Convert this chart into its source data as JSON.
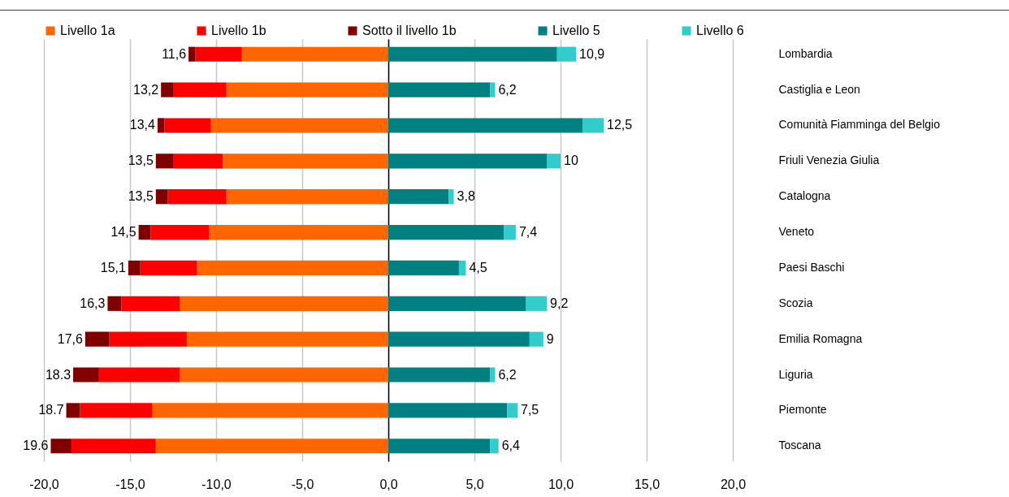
{
  "chart_data": {
    "type": "bar",
    "orientation": "horizontal",
    "stacked": true,
    "categories": [
      "Lombardia",
      "Castiglia e Leon",
      "Comunità Fiamminga del Belgio",
      "Friuli Venezia Giulia",
      "Catalogna",
      "Veneto",
      "Paesi Baschi",
      "Scozia",
      "Emilia Romagna",
      "Liguria",
      "Piemonte",
      "Toscana"
    ],
    "series": [
      {
        "name": "Livello 1a",
        "color": "#ff6600",
        "values": [
          -8.5,
          -9.4,
          -10.3,
          -9.6,
          -9.4,
          -10.4,
          -11.1,
          -12.1,
          -11.7,
          -12.1,
          -13.7,
          -13.5
        ]
      },
      {
        "name": "Livello 1b",
        "color": "#ff0000",
        "values": [
          -2.7,
          -3.1,
          -2.7,
          -2.9,
          -3.4,
          -3.4,
          -3.3,
          -3.4,
          -4.5,
          -4.7,
          -4.2,
          -4.9
        ]
      },
      {
        "name": "Sotto il livello 1b",
        "color": "#800000",
        "values": [
          -0.4,
          -0.7,
          -0.4,
          -1.0,
          -0.7,
          -0.7,
          -0.7,
          -0.8,
          -1.4,
          -1.5,
          -0.8,
          -1.2
        ]
      },
      {
        "name": "Livello 5",
        "color": "#008080",
        "values": [
          9.8,
          5.9,
          11.3,
          9.2,
          3.5,
          6.7,
          4.1,
          8.0,
          8.2,
          5.9,
          6.9,
          5.9
        ]
      },
      {
        "name": "Livello 6",
        "color": "#33cccc",
        "values": [
          1.1,
          0.3,
          1.2,
          0.8,
          0.3,
          0.7,
          0.4,
          1.2,
          0.8,
          0.3,
          0.6,
          0.5
        ]
      }
    ],
    "annotations": [
      {
        "text": "11,6",
        "x": -11.6,
        "y": "Lombardia"
      },
      {
        "text": "13,2",
        "x": -13.2,
        "y": "Castiglia e Leon"
      },
      {
        "text": "13,4",
        "x": -13.4,
        "y": "Comunità Fiamminga del Belgio"
      },
      {
        "text": "13,5",
        "x": -13.5,
        "y": "Friuli Venezia Giulia"
      },
      {
        "text": "13,5",
        "x": -13.5,
        "y": "Catalogna"
      },
      {
        "text": "14,5",
        "x": -14.5,
        "y": "Veneto"
      },
      {
        "text": "15,1",
        "x": -15.1,
        "y": "Paesi Baschi"
      },
      {
        "text": "16,3",
        "x": -16.3,
        "y": "Scozia"
      },
      {
        "text": "17,6",
        "x": -17.6,
        "y": "Emilia Romagna"
      },
      {
        "text": "18.3",
        "x": -18.3,
        "y": "Liguria"
      },
      {
        "text": "18.7",
        "x": -18.7,
        "y": "Piemonte"
      },
      {
        "text": "19.6",
        "x": -19.6,
        "y": "Toscana"
      },
      {
        "text": "10,9",
        "x": 10.9,
        "y": "Lombardia"
      },
      {
        "text": "6,2",
        "x": 6.2,
        "y": "Castiglia e Leon"
      },
      {
        "text": "12,5",
        "x": 12.5,
        "y": "Comunità Fiamminga del Belgio"
      },
      {
        "text": "10",
        "x": 10,
        "y": "Friuli Venezia Giulia"
      },
      {
        "text": "3,8",
        "x": 3.8,
        "y": "Catalogna"
      },
      {
        "text": "7,4",
        "x": 7.4,
        "y": "Veneto"
      },
      {
        "text": "4,5",
        "x": 4.5,
        "y": "Paesi Baschi"
      },
      {
        "text": "9,2",
        "x": 9.2,
        "y": "Scozia"
      },
      {
        "text": "9",
        "x": 9,
        "y": "Emilia Romagna"
      },
      {
        "text": "6,2",
        "x": 6.2,
        "y": "Liguria"
      },
      {
        "text": "7,5",
        "x": 7.5,
        "y": "Piemonte"
      },
      {
        "text": "6,4",
        "x": 6.4,
        "y": "Toscana"
      }
    ],
    "xlim": [
      -20,
      20
    ],
    "xticks": [
      {
        "value": -20,
        "label": "-20,0"
      },
      {
        "value": -15,
        "label": "-15,0"
      },
      {
        "value": -10,
        "label": "-10,0"
      },
      {
        "value": -5,
        "label": "-5,0"
      },
      {
        "value": 0,
        "label": "0,0"
      },
      {
        "value": 5,
        "label": "5,0"
      },
      {
        "value": 10,
        "label": "10,0"
      },
      {
        "value": 15,
        "label": "15,0"
      },
      {
        "value": 20,
        "label": "20,0"
      }
    ],
    "grid": "x",
    "legend": "top"
  }
}
